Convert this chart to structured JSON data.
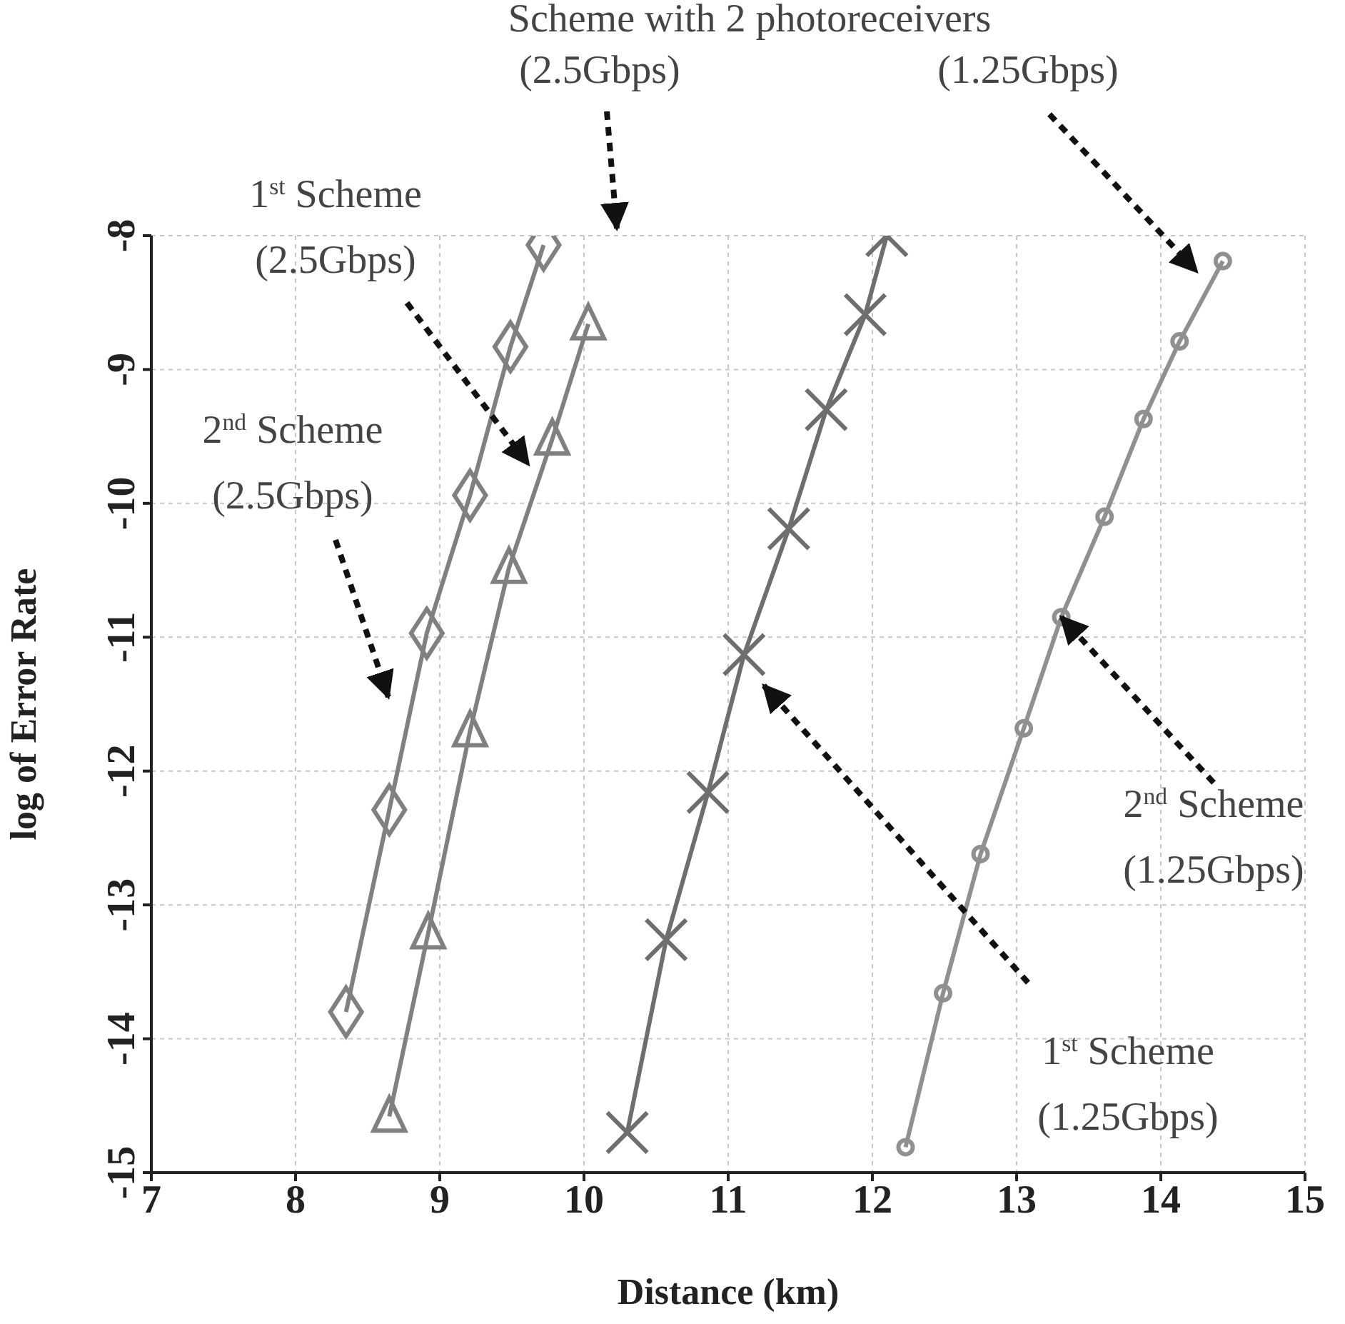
{
  "chart_data": {
    "type": "line",
    "xlabel": "Distance (km)",
    "ylabel": "log of Error Rate",
    "xlim": [
      7,
      15
    ],
    "xticks": [
      7,
      8,
      9,
      10,
      11,
      12,
      13,
      14,
      15
    ],
    "ylim": [
      -15,
      -8
    ],
    "yticks": [
      -15,
      -14,
      -13,
      -12,
      -11,
      -10,
      -9,
      -8
    ],
    "grid": true,
    "line_style": "solid",
    "series": [
      {
        "color": "#808080",
        "marker": "diamond",
        "x": [
          9.72,
          9.49,
          9.21,
          8.91,
          8.65,
          8.35
        ],
        "values": [
          -8.07,
          -8.83,
          -9.94,
          -10.97,
          -12.29,
          -13.8
        ]
      },
      {
        "color": "#808080",
        "marker": "triangle",
        "x": [
          10.03,
          9.78,
          9.48,
          9.21,
          8.92,
          8.65
        ],
        "values": [
          -8.66,
          -9.52,
          -10.48,
          -11.7,
          -13.21,
          -14.58
        ]
      },
      {
        "color": "#6e6e6e",
        "marker": "cross",
        "x": [
          12.1,
          11.95,
          11.68,
          11.42,
          11.11,
          10.86,
          10.57,
          10.3
        ],
        "values": [
          -8.0,
          -8.59,
          -9.3,
          -10.19,
          -11.13,
          -12.16,
          -13.26,
          -14.7
        ]
      },
      {
        "color": "#909090",
        "marker": "circle",
        "x": [
          14.43,
          14.13,
          13.88,
          13.61,
          13.31,
          13.05,
          12.75,
          12.49,
          12.23
        ],
        "values": [
          -8.19,
          -8.79,
          -9.37,
          -10.1,
          -10.85,
          -11.68,
          -12.62,
          -13.66,
          -14.81
        ]
      }
    ],
    "annotations": [
      "Scheme with 2 photoreceivers",
      "(2.5Gbps)",
      "(1.25Gbps)",
      "1$^{st}$ Scheme (2.5Gbps)",
      "2$^{nd}$ Scheme (2.5Gbps)",
      "1$^{st}$ Scheme (1.25Gbps)",
      {
        "text": "2$^{nd}$ Scheme (1.25Gbps)",
        "x": 13.31,
        "y": -10.85
      }
    ]
  }
}
